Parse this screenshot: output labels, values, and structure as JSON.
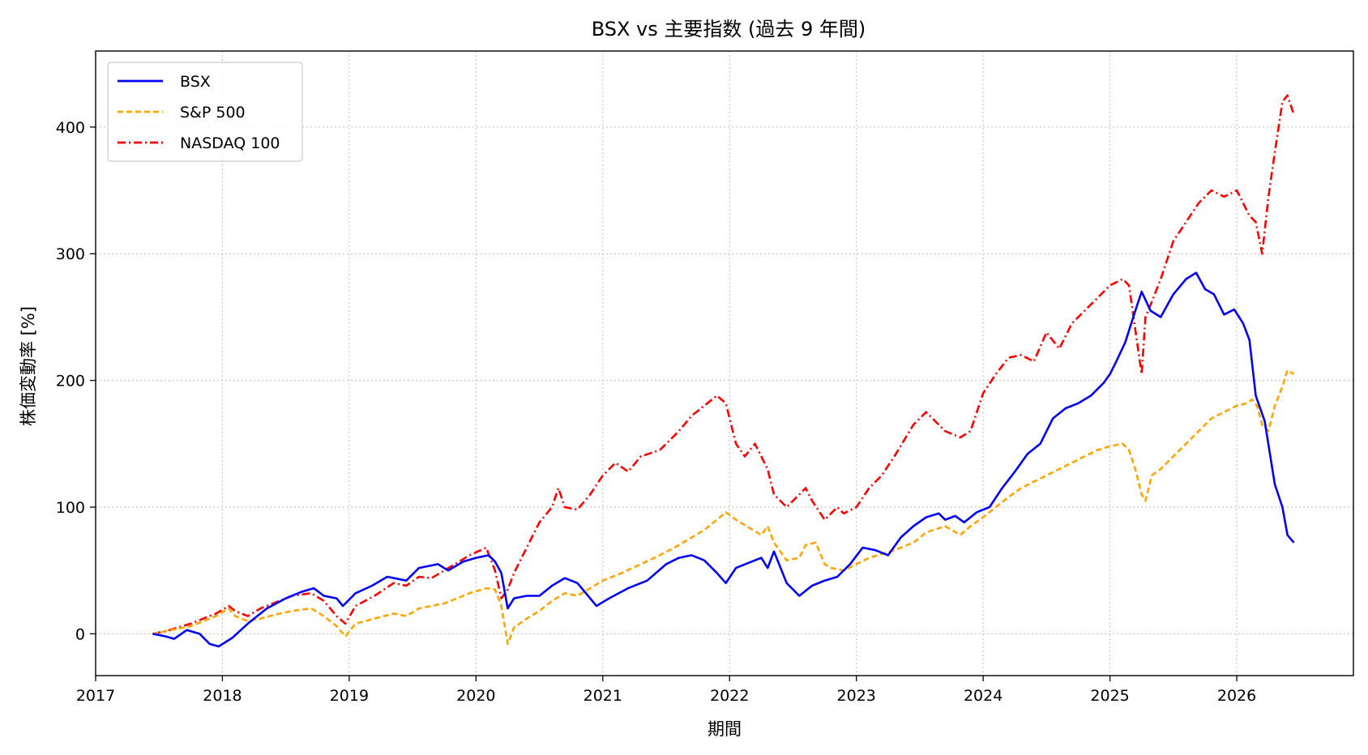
{
  "chart_data": {
    "type": "line",
    "title": "BSX vs 主要指数 (過去 9 年間)",
    "xlabel": "期間",
    "ylabel": "株価変動率 [%]",
    "xlim": [
      2017.0,
      2026.92
    ],
    "ylim": [
      -33,
      460
    ],
    "x_ticks": [
      2017,
      2018,
      2019,
      2020,
      2021,
      2022,
      2023,
      2024,
      2025,
      2026
    ],
    "x_tick_labels": [
      "2017",
      "2018",
      "2019",
      "2020",
      "2021",
      "2022",
      "2023",
      "2024",
      "2025",
      "2026"
    ],
    "y_ticks": [
      0,
      100,
      200,
      300,
      400
    ],
    "y_tick_labels": [
      "0",
      "100",
      "200",
      "300",
      "400"
    ],
    "grid": true,
    "legend_position": "top-left",
    "series": [
      {
        "name": "BSX",
        "color": "#0000ff",
        "dash": "solid",
        "x": [
          2017.45,
          2017.55,
          2017.62,
          2017.72,
          2017.82,
          2017.9,
          2017.97,
          2018.08,
          2018.2,
          2018.35,
          2018.5,
          2018.62,
          2018.72,
          2018.8,
          2018.9,
          2018.95,
          2019.05,
          2019.18,
          2019.3,
          2019.45,
          2019.55,
          2019.7,
          2019.78,
          2019.9,
          2020.0,
          2020.1,
          2020.15,
          2020.2,
          2020.25,
          2020.3,
          2020.4,
          2020.5,
          2020.6,
          2020.7,
          2020.8,
          2020.9,
          2020.95,
          2021.05,
          2021.2,
          2021.35,
          2021.5,
          2021.6,
          2021.7,
          2021.8,
          2021.9,
          2021.97,
          2022.05,
          2022.15,
          2022.25,
          2022.3,
          2022.35,
          2022.45,
          2022.55,
          2022.65,
          2022.75,
          2022.85,
          2022.95,
          2023.05,
          2023.15,
          2023.25,
          2023.35,
          2023.45,
          2023.55,
          2023.65,
          2023.7,
          2023.78,
          2023.85,
          2023.95,
          2024.05,
          2024.15,
          2024.25,
          2024.35,
          2024.45,
          2024.55,
          2024.65,
          2024.75,
          2024.85,
          2024.95,
          2025.0,
          2025.05,
          2025.12,
          2025.2,
          2025.25,
          2025.32,
          2025.4,
          2025.5,
          2025.6,
          2025.68,
          2025.75,
          2025.82,
          2025.9,
          2025.98,
          2026.05,
          2026.1,
          2026.15,
          2026.22,
          2026.3,
          2026.36,
          2026.4,
          2026.45
        ],
        "y": [
          0,
          -2,
          -4,
          3,
          0,
          -8,
          -10,
          -3,
          8,
          20,
          28,
          33,
          36,
          30,
          28,
          22,
          32,
          38,
          45,
          42,
          52,
          55,
          50,
          57,
          60,
          62,
          57,
          48,
          20,
          28,
          30,
          30,
          38,
          44,
          40,
          28,
          22,
          28,
          36,
          42,
          55,
          60,
          62,
          58,
          48,
          40,
          52,
          56,
          60,
          52,
          65,
          40,
          30,
          38,
          42,
          45,
          55,
          68,
          66,
          62,
          76,
          85,
          92,
          95,
          90,
          93,
          88,
          96,
          100,
          115,
          128,
          142,
          150,
          170,
          178,
          182,
          188,
          198,
          205,
          215,
          230,
          255,
          270,
          255,
          250,
          268,
          280,
          285,
          272,
          268,
          252,
          256,
          245,
          232,
          188,
          168,
          118,
          100,
          78,
          72
        ]
      },
      {
        "name": "S&P 500",
        "color": "#ffa500",
        "dash": "dashed",
        "x": [
          2017.45,
          2017.55,
          2017.65,
          2017.75,
          2017.85,
          2017.95,
          2018.05,
          2018.1,
          2018.2,
          2018.3,
          2018.45,
          2018.55,
          2018.7,
          2018.8,
          2018.9,
          2018.97,
          2019.05,
          2019.2,
          2019.35,
          2019.45,
          2019.55,
          2019.65,
          2019.75,
          2019.85,
          2019.95,
          2020.08,
          2020.15,
          2020.2,
          2020.25,
          2020.3,
          2020.4,
          2020.5,
          2020.6,
          2020.7,
          2020.8,
          2020.9,
          2021.0,
          2021.15,
          2021.3,
          2021.45,
          2021.6,
          2021.7,
          2021.8,
          2021.9,
          2021.97,
          2022.05,
          2022.15,
          2022.25,
          2022.3,
          2022.35,
          2022.45,
          2022.55,
          2022.6,
          2022.68,
          2022.75,
          2022.8,
          2022.9,
          2023.0,
          2023.1,
          2023.2,
          2023.3,
          2023.45,
          2023.55,
          2023.7,
          2023.82,
          2023.9,
          2024.0,
          2024.1,
          2024.2,
          2024.3,
          2024.4,
          2024.5,
          2024.6,
          2024.7,
          2024.8,
          2024.9,
          2025.0,
          2025.1,
          2025.15,
          2025.2,
          2025.25,
          2025.28,
          2025.33,
          2025.4,
          2025.5,
          2025.6,
          2025.7,
          2025.8,
          2025.9,
          2026.0,
          2026.08,
          2026.12,
          2026.16,
          2026.2,
          2026.25,
          2026.3,
          2026.36,
          2026.4,
          2026.45
        ],
        "y": [
          0,
          2,
          4,
          6,
          10,
          14,
          20,
          14,
          10,
          12,
          16,
          18,
          20,
          14,
          6,
          -2,
          8,
          12,
          16,
          14,
          20,
          22,
          24,
          28,
          32,
          36,
          35,
          22,
          -8,
          5,
          12,
          18,
          26,
          32,
          30,
          36,
          42,
          48,
          55,
          62,
          70,
          76,
          82,
          90,
          96,
          90,
          84,
          78,
          85,
          72,
          58,
          60,
          70,
          72,
          55,
          52,
          50,
          55,
          60,
          63,
          66,
          72,
          80,
          85,
          78,
          85,
          92,
          100,
          108,
          115,
          120,
          125,
          130,
          135,
          140,
          145,
          148,
          150,
          145,
          130,
          110,
          105,
          125,
          130,
          140,
          150,
          160,
          170,
          175,
          180,
          182,
          185,
          180,
          165,
          160,
          180,
          195,
          208,
          205
        ]
      },
      {
        "name": "NASDAQ 100",
        "color": "#ff0000",
        "dash": "dashdot",
        "x": [
          2017.45,
          2017.55,
          2017.65,
          2017.75,
          2017.85,
          2017.95,
          2018.05,
          2018.1,
          2018.2,
          2018.3,
          2018.45,
          2018.55,
          2018.7,
          2018.8,
          2018.9,
          2018.97,
          2019.05,
          2019.2,
          2019.35,
          2019.45,
          2019.55,
          2019.65,
          2019.75,
          2019.85,
          2019.95,
          2020.08,
          2020.15,
          2020.2,
          2020.25,
          2020.3,
          2020.4,
          2020.5,
          2020.6,
          2020.65,
          2020.7,
          2020.8,
          2020.9,
          2021.0,
          2021.1,
          2021.2,
          2021.3,
          2021.45,
          2021.6,
          2021.7,
          2021.8,
          2021.9,
          2021.97,
          2022.05,
          2022.12,
          2022.2,
          2022.3,
          2022.35,
          2022.45,
          2022.55,
          2022.6,
          2022.65,
          2022.75,
          2022.85,
          2022.9,
          2023.0,
          2023.1,
          2023.2,
          2023.3,
          2023.45,
          2023.55,
          2023.7,
          2023.82,
          2023.9,
          2024.0,
          2024.1,
          2024.2,
          2024.3,
          2024.4,
          2024.5,
          2024.6,
          2024.7,
          2024.8,
          2024.9,
          2025.0,
          2025.1,
          2025.15,
          2025.2,
          2025.25,
          2025.28,
          2025.33,
          2025.4,
          2025.5,
          2025.6,
          2025.7,
          2025.8,
          2025.9,
          2026.0,
          2026.1,
          2026.15,
          2026.2,
          2026.25,
          2026.3,
          2026.36,
          2026.4,
          2026.45
        ],
        "y": [
          0,
          2,
          5,
          8,
          12,
          16,
          22,
          18,
          14,
          20,
          26,
          30,
          32,
          26,
          14,
          8,
          22,
          30,
          40,
          38,
          45,
          44,
          50,
          56,
          62,
          68,
          50,
          28,
          35,
          48,
          68,
          88,
          100,
          115,
          100,
          98,
          110,
          125,
          135,
          128,
          140,
          145,
          160,
          172,
          180,
          188,
          182,
          150,
          140,
          150,
          130,
          110,
          100,
          110,
          115,
          105,
          90,
          100,
          95,
          100,
          115,
          125,
          140,
          165,
          175,
          160,
          155,
          160,
          190,
          205,
          218,
          220,
          215,
          238,
          225,
          245,
          255,
          265,
          275,
          280,
          275,
          240,
          205,
          250,
          262,
          280,
          310,
          325,
          340,
          350,
          345,
          350,
          330,
          325,
          300,
          345,
          380,
          420,
          425,
          410
        ]
      }
    ]
  }
}
